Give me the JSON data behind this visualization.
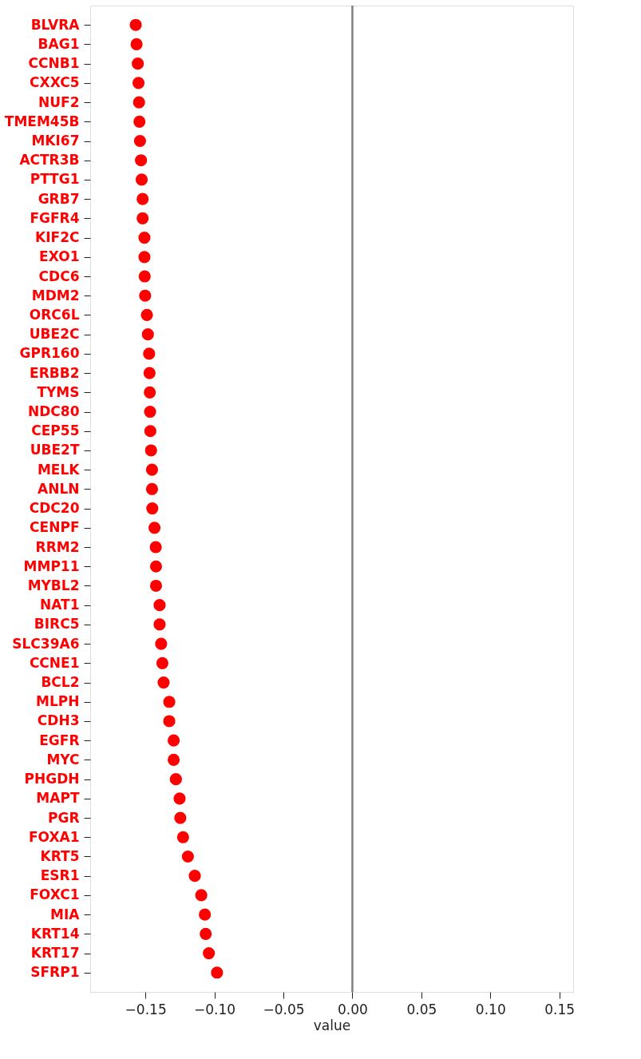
{
  "chart_data": {
    "type": "scatter",
    "xlabel": "value",
    "categories": [
      "BLVRA",
      "BAG1",
      "CCNB1",
      "CXXC5",
      "NUF2",
      "TMEM45B",
      "MKI67",
      "ACTR3B",
      "PTTG1",
      "GRB7",
      "FGFR4",
      "KIF2C",
      "EXO1",
      "CDC6",
      "MDM2",
      "ORC6L",
      "UBE2C",
      "GPR160",
      "ERBB2",
      "TYMS",
      "NDC80",
      "CEP55",
      "UBE2T",
      "MELK",
      "ANLN",
      "CDC20",
      "CENPF",
      "RRM2",
      "MMP11",
      "MYBL2",
      "NAT1",
      "BIRC5",
      "SLC39A6",
      "CCNE1",
      "BCL2",
      "MLPH",
      "CDH3",
      "EGFR",
      "MYC",
      "PHGDH",
      "MAPT",
      "PGR",
      "FOXA1",
      "KRT5",
      "ESR1",
      "FOXC1",
      "MIA",
      "KRT14",
      "KRT17",
      "SFRP1"
    ],
    "orientation": "horizontal",
    "series": [
      {
        "color": "#ff0000",
        "values": [
          -0.157,
          -0.1564,
          -0.1555,
          -0.155,
          -0.1546,
          -0.1543,
          -0.1539,
          -0.1532,
          -0.1527,
          -0.152,
          -0.152,
          -0.1507,
          -0.1507,
          -0.1505,
          -0.1502,
          -0.1489,
          -0.1482,
          -0.1473,
          -0.147,
          -0.1468,
          -0.1466,
          -0.1464,
          -0.1459,
          -0.1452,
          -0.1452,
          -0.145,
          -0.1434,
          -0.1425,
          -0.1423,
          -0.1423,
          -0.1397,
          -0.1397,
          -0.1386,
          -0.1377,
          -0.1368,
          -0.1327,
          -0.1327,
          -0.1295,
          -0.1295,
          -0.1279,
          -0.1252,
          -0.1247,
          -0.1227,
          -0.1192,
          -0.1142,
          -0.1095,
          -0.1069,
          -0.1063,
          -0.104,
          -0.0981
        ]
      }
    ],
    "xlim": [
      -0.19,
      0.16
    ],
    "xticks": [
      {
        "value": -0.15,
        "label": "−0.15"
      },
      {
        "value": -0.1,
        "label": "−0.10"
      },
      {
        "value": -0.05,
        "label": "−0.05"
      },
      {
        "value": 0,
        "label": "0.00"
      },
      {
        "value": 0.05,
        "label": "0.05"
      },
      {
        "value": 0.1,
        "label": "0.10"
      },
      {
        "value": 0.15,
        "label": "0.15"
      }
    ],
    "ref_lines": [
      {
        "axis": "x",
        "value": 0,
        "color": "#808080"
      }
    ],
    "marker": "circle",
    "grid": false,
    "legend": false
  }
}
